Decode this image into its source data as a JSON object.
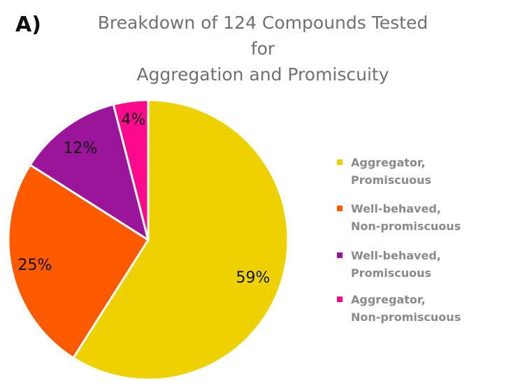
{
  "panel_label": "A)",
  "title_lines": [
    "Breakdown of 124 Compounds Tested for",
    "Aggregation and Promiscuity"
  ],
  "chart_data": {
    "type": "pie",
    "title": "Breakdown of 124 Compounds Tested for Aggregation and Promiscuity",
    "start_angle": "12 o'clock, clockwise",
    "slices": [
      {
        "label_lines": [
          "Aggregator, Promiscuous"
        ],
        "value": 59,
        "display": "59%",
        "color": "#EDD100"
      },
      {
        "label_lines": [
          "Well-behaved,",
          "Non-promiscuous"
        ],
        "value": 25,
        "display": "25%",
        "color": "#FF5A00"
      },
      {
        "label_lines": [
          "Well-behaved,",
          "Promiscuous"
        ],
        "value": 12,
        "display": "12%",
        "color": "#9B159B"
      },
      {
        "label_lines": [
          "Aggregator,",
          "Non-promiscuous"
        ],
        "value": 4,
        "display": "4%",
        "color": "#FF0A8C"
      }
    ],
    "legend_position": "right"
  }
}
